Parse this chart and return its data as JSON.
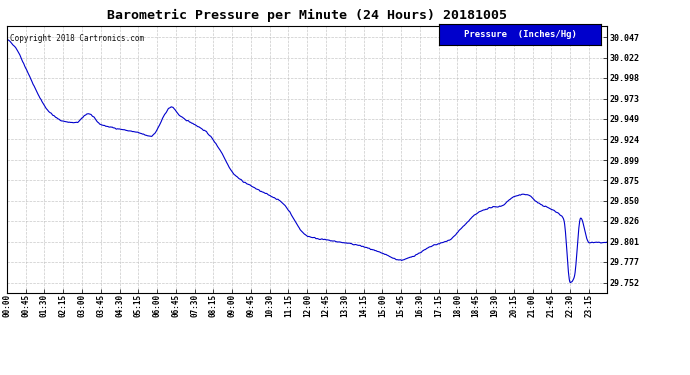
{
  "title": "Barometric Pressure per Minute (24 Hours) 20181005",
  "copyright": "Copyright 2018 Cartronics.com",
  "legend_label": "Pressure  (Inches/Hg)",
  "line_color": "#0000cc",
  "legend_bg": "#0000cc",
  "legend_text_color": "#ffffff",
  "background_color": "#ffffff",
  "grid_color": "#bbbbbb",
  "yticks": [
    29.752,
    29.777,
    29.801,
    29.826,
    29.85,
    29.875,
    29.899,
    29.924,
    29.949,
    29.973,
    29.998,
    30.022,
    30.047
  ],
  "xtick_labels": [
    "00:00",
    "00:45",
    "01:30",
    "02:15",
    "03:00",
    "03:45",
    "04:30",
    "05:15",
    "06:00",
    "06:45",
    "07:30",
    "08:15",
    "09:00",
    "09:45",
    "10:30",
    "11:15",
    "12:00",
    "12:45",
    "13:30",
    "14:15",
    "15:00",
    "15:45",
    "16:30",
    "17:15",
    "18:00",
    "18:45",
    "19:30",
    "20:15",
    "21:00",
    "21:45",
    "22:30",
    "23:15"
  ],
  "ylim_min": 29.74,
  "ylim_max": 30.06,
  "waypoints_x": [
    0,
    20,
    45,
    75,
    100,
    135,
    165,
    195,
    225,
    255,
    285,
    315,
    345,
    395,
    415,
    450,
    480,
    510,
    545,
    600,
    660,
    720,
    780,
    840,
    900,
    945,
    975,
    1020,
    1060,
    1095,
    1130,
    1160,
    1185,
    1215,
    1245,
    1275,
    1305,
    1335,
    1350,
    1360,
    1375,
    1395,
    1439
  ],
  "waypoints_y": [
    30.044,
    30.035,
    30.01,
    29.978,
    29.958,
    29.946,
    29.944,
    29.955,
    29.942,
    29.938,
    29.935,
    29.932,
    29.928,
    29.963,
    29.952,
    29.942,
    29.932,
    29.912,
    29.882,
    29.864,
    29.848,
    29.808,
    29.802,
    29.797,
    29.787,
    29.779,
    29.784,
    29.796,
    29.803,
    29.82,
    29.836,
    29.842,
    29.844,
    29.855,
    29.858,
    29.847,
    29.84,
    29.828,
    29.752,
    29.758,
    29.83,
    29.8,
    29.8
  ]
}
